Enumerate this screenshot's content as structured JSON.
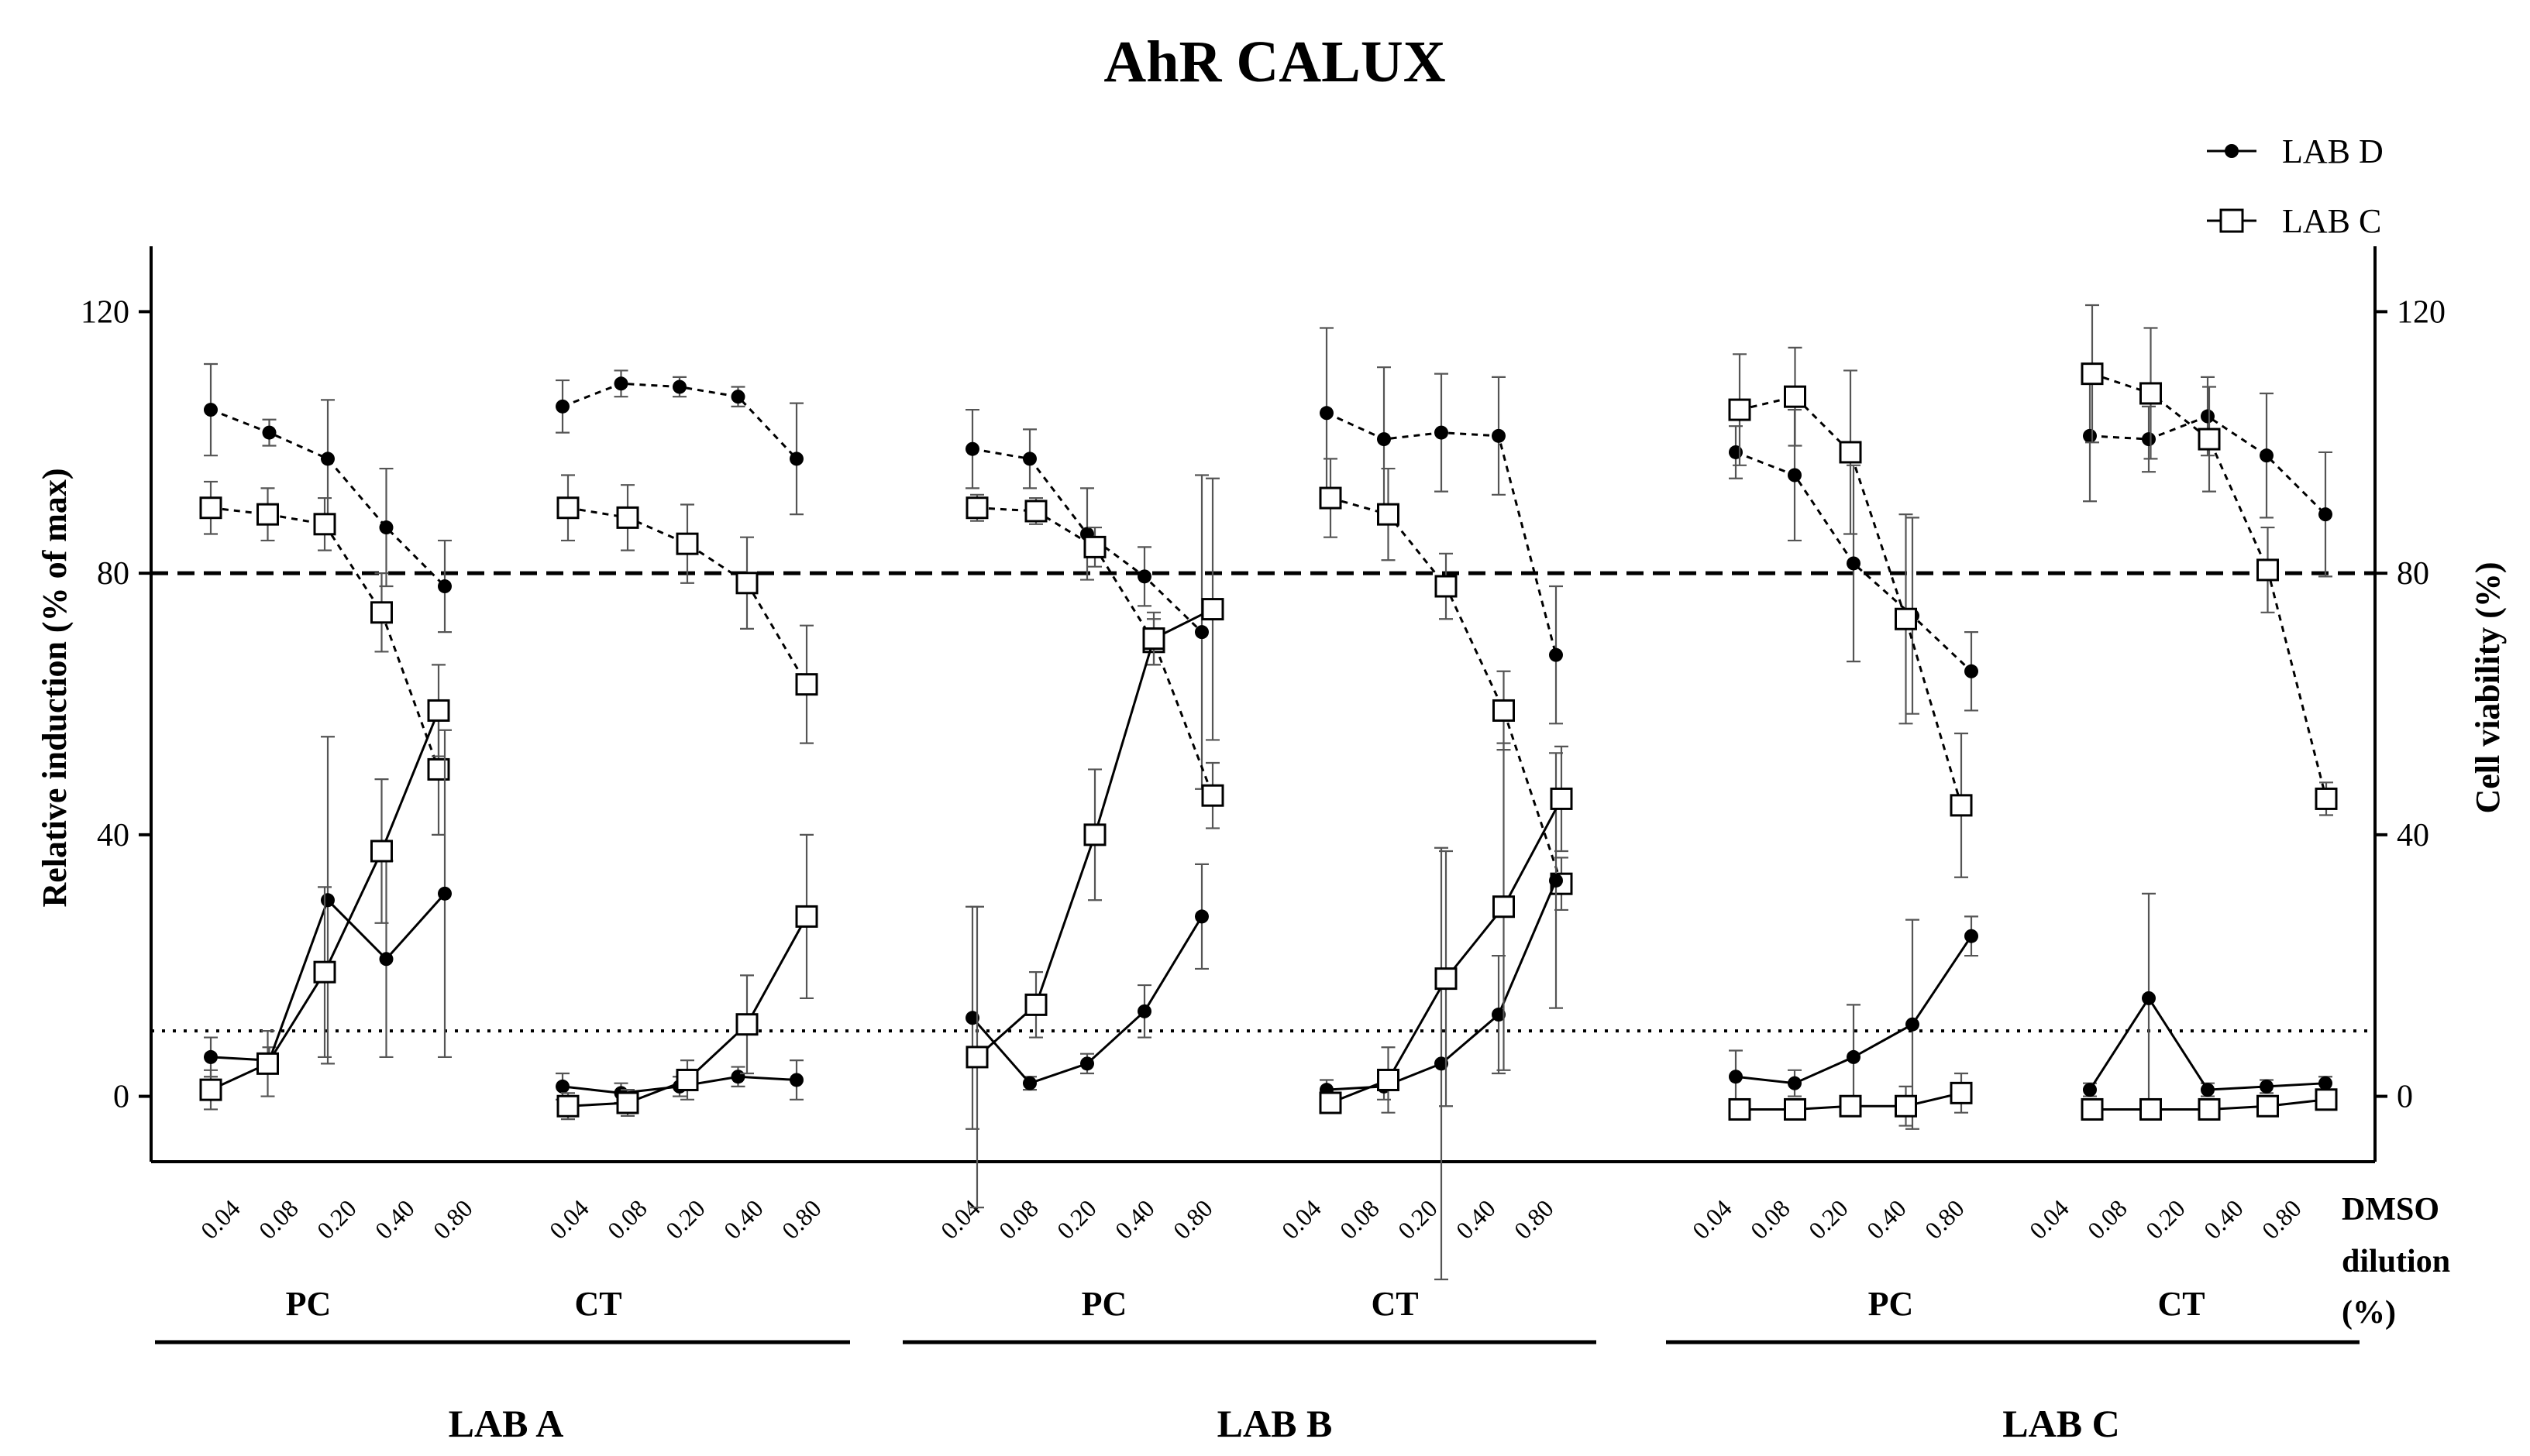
{
  "chart_data": {
    "type": "line",
    "title": "AhR CALUX",
    "y_left_label": "Relative induction (% of max)",
    "y_right_label": "Cell viability (%)",
    "ylim": [
      -10,
      130
    ],
    "yticks": [
      0,
      40,
      80,
      120
    ],
    "reference_lines": {
      "cell_viability_threshold": 80,
      "induction_threshold": 10
    },
    "x_axis_label": [
      "DMSO",
      "dilution",
      "(%)"
    ],
    "x_tick_labels": [
      "0.04",
      "0.08",
      "0.20",
      "0.40",
      "0.80"
    ],
    "legend": [
      {
        "name": "LAB D",
        "marker": "filled-circle"
      },
      {
        "name": "LAB C",
        "marker": "open-square"
      }
    ],
    "labs": [
      "LAB A",
      "LAB B",
      "LAB C"
    ],
    "panels": [
      {
        "lab": "LAB A",
        "group": "PC",
        "D": {
          "induction": [
            6,
            5.5,
            30,
            21,
            31
          ],
          "induction_err": [
            3,
            2,
            25,
            15,
            25
          ],
          "viability": [
            105,
            101.5,
            97.5,
            87,
            78
          ],
          "viability_err": [
            7,
            2,
            9,
            9,
            7
          ]
        },
        "C": {
          "induction": [
            1,
            5,
            19,
            37.5,
            59
          ],
          "induction_err": [
            3,
            5,
            13,
            11,
            7
          ],
          "viability": [
            90,
            89,
            87.5,
            74,
            50
          ],
          "viability_err": [
            4,
            4,
            4,
            6,
            10
          ]
        }
      },
      {
        "lab": "LAB A",
        "group": "CT",
        "D": {
          "induction": [
            1.5,
            0.5,
            1.5,
            3,
            2.5
          ],
          "induction_err": [
            2,
            1.5,
            1.5,
            1.5,
            3
          ],
          "viability": [
            105.5,
            109,
            108.5,
            107,
            97.5
          ],
          "viability_err": [
            4,
            2,
            1.5,
            1.5,
            8.5
          ]
        },
        "C": {
          "induction": [
            -1.5,
            -1,
            2.5,
            11,
            27.5
          ],
          "induction_err": [
            2,
            2,
            3,
            7.5,
            12.5
          ],
          "viability": [
            90,
            88.5,
            84.5,
            78.5,
            63
          ],
          "viability_err": [
            5,
            5,
            6,
            7,
            9
          ]
        }
      },
      {
        "lab": "LAB B",
        "group": "PC",
        "D": {
          "induction": [
            12,
            2,
            5,
            13,
            27.5
          ],
          "induction_err": [
            17,
            1,
            1.5,
            4,
            8
          ],
          "viability": [
            99,
            97.5,
            86,
            79.5,
            71
          ],
          "viability_err": [
            6,
            4.5,
            7,
            4.5,
            24
          ]
        },
        "C": {
          "induction": [
            6,
            14,
            40,
            70,
            74.5
          ],
          "induction_err": [
            23,
            5,
            10,
            4,
            20
          ],
          "viability": [
            90,
            89.5,
            84,
            69.5,
            46
          ],
          "viability_err": [
            2,
            2,
            3,
            3.5,
            5
          ]
        }
      },
      {
        "lab": "LAB B",
        "group": "CT",
        "D": {
          "induction": [
            1,
            1.5,
            5,
            12.5,
            33
          ],
          "induction_err": [
            1.5,
            2,
            33,
            9,
            19.5
          ],
          "viability": [
            104.5,
            100.5,
            101.5,
            101,
            67.5
          ],
          "viability_err": [
            13,
            11,
            9,
            9,
            10.5
          ]
        },
        "C": {
          "induction": [
            -1,
            2.5,
            18,
            29,
            45.5
          ],
          "induction_err": [
            1.5,
            5,
            19.5,
            25,
            8
          ],
          "viability": [
            91.5,
            89,
            78,
            59,
            32.5
          ],
          "viability_err": [
            6,
            7,
            5,
            6,
            4
          ]
        }
      },
      {
        "lab": "LAB C",
        "group": "PC",
        "D": {
          "induction": [
            3,
            2,
            6,
            11,
            24.5
          ],
          "induction_err": [
            4,
            2,
            8,
            16,
            3
          ],
          "viability": [
            98.5,
            95,
            81.5,
            73.5,
            65
          ],
          "viability_err": [
            4,
            10,
            15,
            15,
            6
          ]
        },
        "C": {
          "induction": [
            -2,
            -2,
            -1.5,
            -1.5,
            0.5
          ],
          "induction_err": [
            1.5,
            1.5,
            1.5,
            3,
            3
          ],
          "viability": [
            105,
            107,
            98.5,
            73,
            44.5
          ],
          "viability_err": [
            8.5,
            7.5,
            12.5,
            16,
            11
          ]
        }
      },
      {
        "lab": "LAB C",
        "group": "CT",
        "D": {
          "induction": [
            1,
            15,
            1,
            1.5,
            2
          ],
          "induction_err": [
            1,
            16,
            1,
            1,
            1
          ],
          "viability": [
            101,
            100.5,
            104,
            98,
            89
          ],
          "viability_err": [
            10,
            5,
            6,
            9.5,
            9.5
          ]
        },
        "C": {
          "induction": [
            -2,
            -2,
            -2,
            -1.5,
            -0.5
          ],
          "induction_err": [
            1.5,
            1.5,
            1.5,
            1.5,
            1.5
          ],
          "viability": [
            110.5,
            107.5,
            100.5,
            80.5,
            45.5
          ],
          "viability_err": [
            10.5,
            10,
            8,
            6.5,
            2.5
          ]
        }
      }
    ]
  }
}
